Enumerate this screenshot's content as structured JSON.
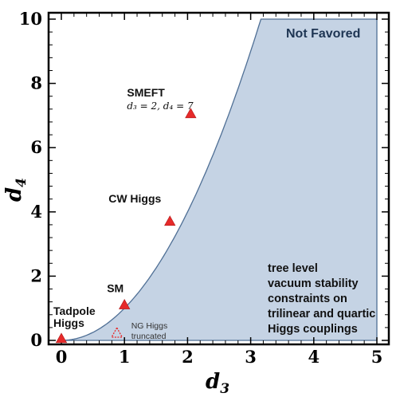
{
  "chart_data": {
    "type": "scatter",
    "xlabel": "d",
    "xlabel_sub": "3",
    "ylabel": "d",
    "ylabel_sub": "4",
    "xlim": [
      0,
      5
    ],
    "ylim": [
      0,
      10
    ],
    "x_ticks": [
      "0",
      "1",
      "2",
      "3",
      "4",
      "5"
    ],
    "y_ticks": [
      "0",
      "2",
      "4",
      "6",
      "8",
      "10"
    ],
    "region": {
      "label": "Not Favored",
      "boundary": "d4 = d3^2",
      "fill_color": "#c5d3e4",
      "edge_color": "#4f6f95"
    },
    "note_lines": [
      "tree level",
      "vacuum stability",
      "constraints on",
      "trilinear and quartic",
      "Higgs couplings"
    ],
    "points": [
      {
        "x": 0,
        "y": 0.05,
        "label_lines": [
          "Tadpole",
          "Higgs"
        ],
        "marker": "filled-triangle"
      },
      {
        "x": 1,
        "y": 1.1,
        "label_lines": [
          "SM"
        ],
        "marker": "filled-triangle"
      },
      {
        "x": 1.72,
        "y": 3.7,
        "label_lines": [
          "CW Higgs"
        ],
        "marker": "filled-triangle"
      },
      {
        "x": 2.05,
        "y": 7.05,
        "label_lines": [
          "SMEFT"
        ],
        "sublabel": "d₃ = 2, d₄ = 7",
        "marker": "filled-triangle"
      },
      {
        "x": 0.88,
        "y": 0.22,
        "label_lines": [
          "NG Higgs",
          "truncated"
        ],
        "marker": "open-triangle"
      }
    ],
    "marker_color": "#e62a2a"
  }
}
